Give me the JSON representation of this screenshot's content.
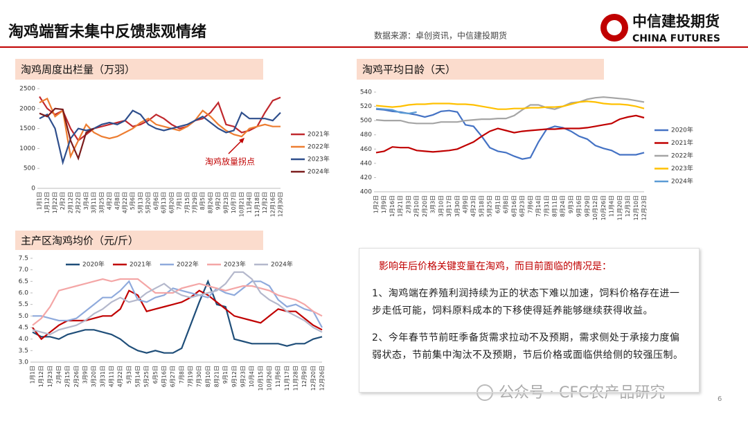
{
  "header": {
    "title": "淘鸡端暂未集中反馈悲观情绪",
    "source": "数据来源：卓创资讯，中信建投期货",
    "logo_cn": "中信建投期货",
    "logo_en": "CHINA FUTURES"
  },
  "chart_data": [
    {
      "type": "line",
      "title": "淘鸡周度出栏量（万羽）",
      "legend": "right",
      "annotation": "淘鸡放量拐点",
      "categories": [
        "1月1日",
        "1月12日",
        "1月22日",
        "2月2日",
        "2月12日",
        "2月22日",
        "3月4日",
        "3月11日",
        "3月25日",
        "4月2日",
        "4月8日",
        "4月22日",
        "5月6日",
        "5月13日",
        "5月20日",
        "6月6日",
        "6月13日",
        "6月20日",
        "7月1日",
        "7月15日",
        "7月29日",
        "8月5日",
        "8月26日",
        "9月2日",
        "9月23日",
        "10月7日",
        "10月21日",
        "11月4日",
        "11月18日",
        "12月2日",
        "12月16日",
        "12月30日"
      ],
      "ylim": [
        0,
        2500
      ],
      "yticks": [
        0,
        500,
        1000,
        1500,
        2000,
        2500
      ],
      "series": [
        {
          "name": "2021年",
          "color": "#c0282d",
          "values": [
            2300,
            2000,
            1850,
            1950,
            1500,
            1200,
            1350,
            1500,
            1550,
            1600,
            1650,
            1700,
            1550,
            1600,
            1700,
            1850,
            1750,
            1600,
            1500,
            1550,
            1700,
            1750,
            1900,
            2150,
            1600,
            1550,
            1400,
            1450,
            1550,
            1900,
            2200,
            2280
          ]
        },
        {
          "name": "2022年",
          "color": "#ed7d31",
          "values": [
            2150,
            2250,
            1800,
            1950,
            800,
            1200,
            1600,
            1400,
            1300,
            1250,
            1300,
            1400,
            1500,
            1650,
            1750,
            1600,
            1550,
            1500,
            1450,
            1550,
            1700,
            1950,
            1800,
            1600,
            1450,
            1350,
            1300,
            1500,
            1550,
            1600,
            1550,
            1550
          ]
        },
        {
          "name": "2023年",
          "color": "#2e4e8c",
          "values": [
            1750,
            1850,
            1500,
            650,
            1250,
            1500,
            1450,
            1500,
            1600,
            1650,
            1600,
            1700,
            1950,
            1850,
            1600,
            1500,
            1450,
            1500,
            1550,
            1600,
            1700,
            1800,
            1650,
            1500,
            1400,
            1450,
            1900,
            1750,
            1750,
            1750,
            1700,
            1900
          ]
        },
        {
          "name": "2024年",
          "color": "#7b1c1c",
          "values": [
            1880,
            1800,
            2000,
            1980,
            1200,
            750,
            1400,
            1500,
            null,
            null,
            null,
            null,
            null,
            null,
            null,
            null,
            null,
            null,
            null,
            null,
            null,
            null,
            null,
            null,
            null,
            null,
            null,
            null,
            null,
            null,
            null,
            null
          ]
        }
      ]
    },
    {
      "type": "line",
      "title": "淘鸡平均日龄（天）",
      "legend": "right",
      "categories": [
        "1月2日",
        "1月9日",
        "1月16日",
        "1月21日",
        "2月3日",
        "2月10日",
        "2月20日",
        "3月3日",
        "3月10日",
        "3月17日",
        "3月30日",
        "4月9日",
        "4月23日",
        "5月18日",
        "5月25日",
        "6月1日",
        "6月8日",
        "6月16日",
        "6月23日",
        "7月6日",
        "7月14日",
        "7月31日",
        "8月11日",
        "8月24日",
        "9月3日",
        "9月16日",
        "9月29日",
        "10月12日",
        "10月26日",
        "11月4日",
        "11月20日",
        "12月3日",
        "12月10日",
        "12月23日"
      ],
      "ylim": [
        400,
        540
      ],
      "yticks": [
        400,
        420,
        440,
        460,
        480,
        500,
        520,
        540
      ],
      "series": [
        {
          "name": "2020年",
          "color": "#4472c4",
          "values": [
            516,
            515,
            513,
            512,
            510,
            508,
            505,
            508,
            513,
            514,
            512,
            494,
            492,
            478,
            462,
            457,
            455,
            450,
            446,
            448,
            470,
            488,
            492,
            490,
            485,
            478,
            474,
            465,
            461,
            458,
            452,
            452,
            452,
            455
          ]
        },
        {
          "name": "2021年",
          "color": "#c00000",
          "values": [
            455,
            457,
            463,
            462,
            462,
            458,
            457,
            456,
            457,
            458,
            460,
            465,
            470,
            478,
            485,
            489,
            486,
            483,
            485,
            486,
            487,
            488,
            488,
            489,
            489,
            489,
            490,
            492,
            494,
            496,
            502,
            505,
            507,
            504
          ]
        },
        {
          "name": "2022年",
          "color": "#a5a5a5",
          "values": [
            501,
            500,
            500,
            500,
            497,
            496,
            496,
            496,
            498,
            498,
            498,
            500,
            501,
            502,
            502,
            503,
            503,
            507,
            515,
            522,
            522,
            518,
            516,
            520,
            525,
            526,
            530,
            532,
            533,
            532,
            531,
            530,
            528,
            526
          ]
        },
        {
          "name": "2023年",
          "color": "#ffc000",
          "values": [
            521,
            520,
            519,
            520,
            522,
            523,
            523,
            524,
            524,
            524,
            523,
            523,
            522,
            520,
            518,
            516,
            516,
            517,
            517,
            518,
            518,
            519,
            519,
            520,
            523,
            526,
            527,
            526,
            524,
            523,
            523,
            522,
            520,
            517
          ]
        },
        {
          "name": "2024年",
          "color": "#5b9bd5",
          "values": [
            517,
            516,
            515,
            511,
            510,
            512,
            null,
            null,
            null,
            null,
            null,
            null,
            null,
            null,
            null,
            null,
            null,
            null,
            null,
            null,
            null,
            null,
            null,
            null,
            null,
            null,
            null,
            null,
            null,
            null,
            null,
            null,
            null,
            null
          ]
        }
      ]
    },
    {
      "type": "line",
      "title": "主产区淘鸡均价（元/斤）",
      "legend": "top",
      "categories": [
        "1月1日",
        "1月12日",
        "1月23日",
        "2月4日",
        "2月15日",
        "2月26日",
        "3月9日",
        "3月20日",
        "3月31日",
        "4月11日",
        "4月22日",
        "5月3日",
        "5月14日",
        "5月25日",
        "6月5日",
        "6月16日",
        "6月27日",
        "7月8日",
        "7月19日",
        "7月30日",
        "8月10日",
        "8月21日",
        "9月1日",
        "9月12日",
        "9月23日",
        "10月4日",
        "10月15日",
        "10月26日",
        "11月6日",
        "11月17日",
        "11月28日",
        "12月9日",
        "12月20日",
        "12月26日"
      ],
      "ylim": [
        3,
        7.5
      ],
      "yticks": [
        {
          "value": 3,
          "label": "3.0"
        },
        3.5,
        {
          "value": 4,
          "label": "4.0"
        },
        4.5,
        {
          "value": 5,
          "label": "5.0"
        },
        5.5,
        {
          "value": 6,
          "label": "6.0"
        },
        6.5,
        {
          "value": 7,
          "label": "7.0"
        },
        7.5
      ],
      "series": [
        {
          "name": "2020年",
          "color": "#1f4e79",
          "values": [
            4.3,
            4.1,
            4.1,
            4.0,
            4.2,
            4.3,
            4.4,
            4.4,
            4.3,
            4.2,
            4.0,
            3.7,
            3.5,
            3.4,
            3.5,
            3.4,
            3.4,
            3.6,
            4.6,
            5.6,
            6.5,
            5.5,
            5.4,
            4.0,
            3.9,
            3.8,
            3.8,
            3.8,
            3.8,
            3.7,
            3.8,
            3.8,
            4.0,
            4.1
          ]
        },
        {
          "name": "2021年",
          "color": "#c00000",
          "values": [
            4.5,
            4.0,
            4.3,
            4.6,
            4.8,
            4.8,
            4.8,
            4.9,
            5.0,
            5.0,
            5.3,
            6.1,
            5.9,
            5.2,
            5.3,
            5.4,
            5.5,
            5.6,
            5.8,
            6.1,
            5.9,
            5.6,
            5.3,
            5.0,
            4.9,
            4.8,
            4.7,
            5.0,
            5.3,
            5.2,
            5.2,
            4.9,
            4.6,
            4.4
          ]
        },
        {
          "name": "2022年",
          "color": "#8faadc",
          "values": [
            5.0,
            5.0,
            4.9,
            4.8,
            4.8,
            4.9,
            5.2,
            5.5,
            5.8,
            5.8,
            6.1,
            6.5,
            5.7,
            5.6,
            5.8,
            5.9,
            6.2,
            6.1,
            6.0,
            5.9,
            5.8,
            6.2,
            6.0,
            5.9,
            6.2,
            6.5,
            6.5,
            6.3,
            5.7,
            5.4,
            5.5,
            5.3,
            5.2,
            4.5
          ]
        },
        {
          "name": "2023年",
          "color": "#f4a6a6",
          "values": [
            4.6,
            4.9,
            5.4,
            6.1,
            6.2,
            6.3,
            6.4,
            6.5,
            6.6,
            6.5,
            6.6,
            6.6,
            6.6,
            6.3,
            6.0,
            6.0,
            6.0,
            6.2,
            6.3,
            6.4,
            6.3,
            6.2,
            6.1,
            6.2,
            6.3,
            6.3,
            6.2,
            6.1,
            5.9,
            5.8,
            5.7,
            5.5,
            5.2,
            5.0
          ]
        },
        {
          "name": "2024年",
          "color": "#b4b8cc",
          "values": [
            4.4,
            4.3,
            4.2,
            4.4,
            4.5,
            4.6,
            4.8,
            5.1,
            5.3,
            5.6,
            5.8,
            5.6,
            5.7,
            6.0,
            6.2,
            6.4,
            6.1,
            5.9,
            5.8,
            5.9,
            6.0,
            6.1,
            6.4,
            6.9,
            6.9,
            6.6,
            6.0,
            5.7,
            5.5,
            5.2,
            5.0,
            4.8,
            4.5,
            4.3
          ]
        }
      ]
    }
  ],
  "textbox": {
    "heading": "影响年后价格关键变量在淘鸡，而目前面临的情况是：",
    "paragraphs": [
      "1、淘鸡端在养殖利润持续为正的状态下难以加速，饲料价格存在进一步走低可能，饲料原料成本的下移使得延养能够继续获得收益。",
      "2、今年春节节前旺季备货需求拉动不及预期，需求侧处于承接力度偏弱状态，节前集中淘汰不及预期，节后价格或面临供给侧的较强压制。"
    ]
  },
  "watermark": "公众号 · CFC农产品研究",
  "page_number": "6"
}
